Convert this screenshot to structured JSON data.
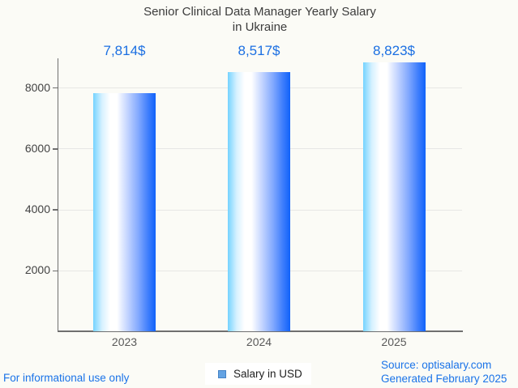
{
  "title": {
    "line1": "Senior Clinical Data Manager Yearly Salary",
    "line2": "in Ukraine"
  },
  "chart_data": {
    "type": "bar",
    "title": "Senior Clinical Data Manager Yearly Salary in Ukraine",
    "categories": [
      "2023",
      "2024",
      "2025"
    ],
    "values": [
      7814,
      8517,
      8823
    ],
    "value_labels": [
      "7,814$",
      "8,517$",
      "8,823$"
    ],
    "xlabel": "",
    "ylabel": "",
    "ylim": [
      0,
      8960
    ],
    "yticks": [
      2000,
      4000,
      6000,
      8000
    ],
    "grid": true,
    "legend": [
      "Salary in USD"
    ],
    "legend_position": "bottom",
    "bar_gradient": [
      "#74d3ff",
      "#ffffff",
      "#1062fa"
    ]
  },
  "legend": {
    "label": "Salary in USD",
    "swatch_fill": "#64a3e3",
    "swatch_border": "#4583c6"
  },
  "footer": {
    "disclaimer": "For informational use only",
    "source": "Source: optisalary.com",
    "generated": "Generated February 2025"
  },
  "colors": {
    "background": "#fbfbf6",
    "title_text": "#3c3c3c",
    "value_label": "#1b6fe2",
    "footer_link": "#1a73e8",
    "axis": "#6f6f6f",
    "gridline": "#e7e7e5",
    "ytick_label": "#434343",
    "xtick_label": "#595959"
  }
}
